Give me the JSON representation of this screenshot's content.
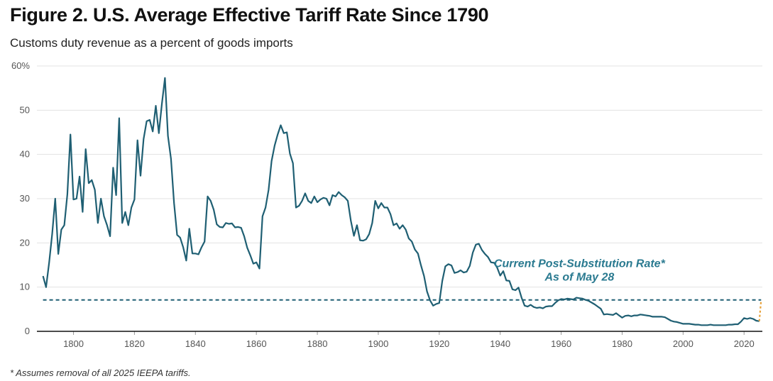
{
  "title": "Figure 2. U.S. Average Effective Tariff Rate Since 1790",
  "subtitle": "Customs duty revenue as a percent of goods imports",
  "footnote": "* Assumes removal of all 2025 IEEPA tariffs.",
  "colors": {
    "line": "#1f5f73",
    "annotation": "#2a7a90",
    "grid": "#e3e3e3",
    "axis": "#111111"
  },
  "chart_data": {
    "type": "line",
    "title": "Figure 2. U.S. Average Effective Tariff Rate Since 1790",
    "subtitle": "Customs duty revenue as a percent of goods imports",
    "xlabel": "",
    "ylabel": "",
    "xlim": [
      1788,
      2026
    ],
    "ylim": [
      0,
      60
    ],
    "grid": true,
    "x_ticks": [
      1800,
      1820,
      1840,
      1860,
      1880,
      1900,
      1920,
      1940,
      1960,
      1980,
      2000,
      2020
    ],
    "y_ticks": [
      {
        "value": 0,
        "label": "0"
      },
      {
        "value": 10,
        "label": "10"
      },
      {
        "value": 20,
        "label": "20"
      },
      {
        "value": 30,
        "label": "30"
      },
      {
        "value": 40,
        "label": "40"
      },
      {
        "value": 50,
        "label": "50"
      },
      {
        "value": 60,
        "label": "60%"
      }
    ],
    "series": [
      {
        "values": [
          [
            1790,
            12.5
          ],
          [
            1791,
            10.0
          ],
          [
            1792,
            15.5
          ],
          [
            1793,
            22.0
          ],
          [
            1794,
            30.0
          ],
          [
            1795,
            17.5
          ],
          [
            1796,
            23.0
          ],
          [
            1797,
            24.0
          ],
          [
            1798,
            31.0
          ],
          [
            1799,
            44.5
          ],
          [
            1800,
            29.8
          ],
          [
            1801,
            30.0
          ],
          [
            1802,
            35.0
          ],
          [
            1803,
            27.0
          ],
          [
            1804,
            41.2
          ],
          [
            1805,
            33.5
          ],
          [
            1806,
            34.2
          ],
          [
            1807,
            32.0
          ],
          [
            1808,
            24.5
          ],
          [
            1809,
            30.0
          ],
          [
            1810,
            26.0
          ],
          [
            1811,
            24.0
          ],
          [
            1812,
            21.5
          ],
          [
            1813,
            37.0
          ],
          [
            1814,
            30.8
          ],
          [
            1815,
            48.2
          ],
          [
            1816,
            24.5
          ],
          [
            1817,
            27.0
          ],
          [
            1818,
            24.0
          ],
          [
            1819,
            28.0
          ],
          [
            1820,
            29.8
          ],
          [
            1821,
            43.2
          ],
          [
            1822,
            35.2
          ],
          [
            1823,
            43.5
          ],
          [
            1824,
            47.5
          ],
          [
            1825,
            47.8
          ],
          [
            1826,
            45.2
          ],
          [
            1827,
            51.0
          ],
          [
            1828,
            44.8
          ],
          [
            1829,
            51.5
          ],
          [
            1830,
            57.3
          ],
          [
            1831,
            44.2
          ],
          [
            1832,
            39.0
          ],
          [
            1833,
            29.0
          ],
          [
            1834,
            21.8
          ],
          [
            1835,
            21.2
          ],
          [
            1836,
            19.0
          ],
          [
            1837,
            16.0
          ],
          [
            1838,
            23.2
          ],
          [
            1839,
            17.6
          ],
          [
            1840,
            17.6
          ],
          [
            1841,
            17.4
          ],
          [
            1842,
            19.0
          ],
          [
            1843,
            20.3
          ],
          [
            1844,
            30.5
          ],
          [
            1845,
            29.5
          ],
          [
            1846,
            27.5
          ],
          [
            1847,
            24.2
          ],
          [
            1848,
            23.6
          ],
          [
            1849,
            23.5
          ],
          [
            1850,
            24.5
          ],
          [
            1851,
            24.3
          ],
          [
            1852,
            24.4
          ],
          [
            1853,
            23.5
          ],
          [
            1854,
            23.6
          ],
          [
            1855,
            23.4
          ],
          [
            1856,
            21.5
          ],
          [
            1857,
            18.9
          ],
          [
            1858,
            17.2
          ],
          [
            1859,
            15.3
          ],
          [
            1860,
            15.6
          ],
          [
            1861,
            14.2
          ],
          [
            1862,
            26.0
          ],
          [
            1863,
            28.0
          ],
          [
            1864,
            32.0
          ],
          [
            1865,
            38.5
          ],
          [
            1866,
            42.0
          ],
          [
            1867,
            44.5
          ],
          [
            1868,
            46.6
          ],
          [
            1869,
            44.8
          ],
          [
            1870,
            45.0
          ],
          [
            1871,
            40.2
          ],
          [
            1872,
            38.0
          ],
          [
            1873,
            28.0
          ],
          [
            1874,
            28.4
          ],
          [
            1875,
            29.5
          ],
          [
            1876,
            31.2
          ],
          [
            1877,
            29.5
          ],
          [
            1878,
            29.0
          ],
          [
            1879,
            30.5
          ],
          [
            1880,
            29.2
          ],
          [
            1881,
            29.8
          ],
          [
            1882,
            30.2
          ],
          [
            1883,
            30.0
          ],
          [
            1884,
            28.5
          ],
          [
            1885,
            30.8
          ],
          [
            1886,
            30.5
          ],
          [
            1887,
            31.5
          ],
          [
            1888,
            30.8
          ],
          [
            1889,
            30.3
          ],
          [
            1890,
            29.5
          ],
          [
            1891,
            25.0
          ],
          [
            1892,
            21.6
          ],
          [
            1893,
            24.0
          ],
          [
            1894,
            20.6
          ],
          [
            1895,
            20.5
          ],
          [
            1896,
            20.8
          ],
          [
            1897,
            22.0
          ],
          [
            1898,
            24.5
          ],
          [
            1899,
            29.5
          ],
          [
            1900,
            27.8
          ],
          [
            1901,
            29.0
          ],
          [
            1902,
            28.0
          ],
          [
            1903,
            28.0
          ],
          [
            1904,
            26.5
          ],
          [
            1905,
            24.0
          ],
          [
            1906,
            24.4
          ],
          [
            1907,
            23.2
          ],
          [
            1908,
            24.0
          ],
          [
            1909,
            23.0
          ],
          [
            1910,
            21.0
          ],
          [
            1911,
            20.3
          ],
          [
            1912,
            18.5
          ],
          [
            1913,
            17.6
          ],
          [
            1914,
            14.9
          ],
          [
            1915,
            12.5
          ],
          [
            1916,
            9.0
          ],
          [
            1917,
            7.0
          ],
          [
            1918,
            5.8
          ],
          [
            1919,
            6.2
          ],
          [
            1920,
            6.4
          ],
          [
            1921,
            11.4
          ],
          [
            1922,
            14.7
          ],
          [
            1923,
            15.2
          ],
          [
            1924,
            14.9
          ],
          [
            1925,
            13.2
          ],
          [
            1926,
            13.4
          ],
          [
            1927,
            13.8
          ],
          [
            1928,
            13.3
          ],
          [
            1929,
            13.5
          ],
          [
            1930,
            14.8
          ],
          [
            1931,
            17.8
          ],
          [
            1932,
            19.6
          ],
          [
            1933,
            19.8
          ],
          [
            1934,
            18.4
          ],
          [
            1935,
            17.5
          ],
          [
            1936,
            16.8
          ],
          [
            1937,
            15.6
          ],
          [
            1938,
            15.5
          ],
          [
            1939,
            14.4
          ],
          [
            1940,
            12.6
          ],
          [
            1941,
            13.6
          ],
          [
            1942,
            11.5
          ],
          [
            1943,
            11.4
          ],
          [
            1944,
            9.5
          ],
          [
            1945,
            9.3
          ],
          [
            1946,
            9.9
          ],
          [
            1947,
            7.6
          ],
          [
            1948,
            5.8
          ],
          [
            1949,
            5.6
          ],
          [
            1950,
            6.0
          ],
          [
            1951,
            5.5
          ],
          [
            1952,
            5.3
          ],
          [
            1953,
            5.4
          ],
          [
            1954,
            5.2
          ],
          [
            1955,
            5.6
          ],
          [
            1956,
            5.7
          ],
          [
            1957,
            5.7
          ],
          [
            1958,
            6.4
          ],
          [
            1959,
            7.0
          ],
          [
            1960,
            7.3
          ],
          [
            1961,
            7.2
          ],
          [
            1962,
            7.4
          ],
          [
            1963,
            7.3
          ],
          [
            1964,
            7.2
          ],
          [
            1965,
            7.6
          ],
          [
            1966,
            7.5
          ],
          [
            1967,
            7.4
          ],
          [
            1968,
            7.1
          ],
          [
            1969,
            6.9
          ],
          [
            1970,
            6.5
          ],
          [
            1971,
            6.1
          ],
          [
            1972,
            5.6
          ],
          [
            1973,
            5.1
          ],
          [
            1974,
            3.8
          ],
          [
            1975,
            3.9
          ],
          [
            1976,
            3.8
          ],
          [
            1977,
            3.7
          ],
          [
            1978,
            4.1
          ],
          [
            1979,
            3.6
          ],
          [
            1980,
            3.1
          ],
          [
            1981,
            3.5
          ],
          [
            1982,
            3.6
          ],
          [
            1983,
            3.4
          ],
          [
            1984,
            3.6
          ],
          [
            1985,
            3.6
          ],
          [
            1986,
            3.8
          ],
          [
            1987,
            3.7
          ],
          [
            1988,
            3.6
          ],
          [
            1989,
            3.5
          ],
          [
            1990,
            3.3
          ],
          [
            1991,
            3.3
          ],
          [
            1992,
            3.3
          ],
          [
            1993,
            3.3
          ],
          [
            1994,
            3.2
          ],
          [
            1995,
            2.8
          ],
          [
            1996,
            2.4
          ],
          [
            1997,
            2.2
          ],
          [
            1998,
            2.1
          ],
          [
            1999,
            1.9
          ],
          [
            2000,
            1.7
          ],
          [
            2001,
            1.7
          ],
          [
            2002,
            1.7
          ],
          [
            2003,
            1.6
          ],
          [
            2004,
            1.5
          ],
          [
            2005,
            1.5
          ],
          [
            2006,
            1.4
          ],
          [
            2007,
            1.4
          ],
          [
            2008,
            1.4
          ],
          [
            2009,
            1.5
          ],
          [
            2010,
            1.4
          ],
          [
            2011,
            1.4
          ],
          [
            2012,
            1.4
          ],
          [
            2013,
            1.4
          ],
          [
            2014,
            1.4
          ],
          [
            2015,
            1.5
          ],
          [
            2016,
            1.5
          ],
          [
            2017,
            1.6
          ],
          [
            2018,
            1.6
          ],
          [
            2019,
            2.2
          ],
          [
            2020,
            3.0
          ],
          [
            2021,
            2.8
          ],
          [
            2022,
            3.0
          ],
          [
            2023,
            2.8
          ],
          [
            2024,
            2.4
          ],
          [
            2025,
            2.3
          ]
        ]
      }
    ],
    "reference_line": {
      "value": 7.1,
      "style": "dashed"
    },
    "projection": {
      "from": [
        2025,
        2.3
      ],
      "to": [
        2025.6,
        7.1
      ],
      "style": "dashed",
      "color": "#e8a13a"
    },
    "annotation": {
      "lines": [
        "Current Post-Substitution Rate*",
        "As of May 28"
      ],
      "x": 1966,
      "y": [
        14.5,
        11.5
      ]
    }
  }
}
